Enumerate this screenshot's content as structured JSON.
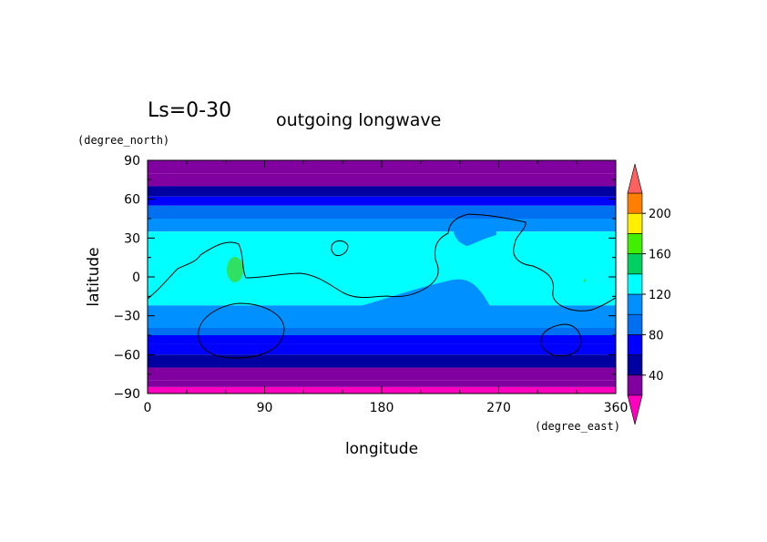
{
  "chart_data": {
    "type": "heatmap",
    "title": "outgoing longwave",
    "subtitle": "Ls=0-30",
    "xlabel": "longitude",
    "ylabel": "latitude",
    "x_units": "(degree_east)",
    "y_units": "(degree_north)",
    "xlim": [
      0,
      360
    ],
    "ylim": [
      -90,
      90
    ],
    "x_ticks": [
      "0",
      "90",
      "180",
      "270",
      "360"
    ],
    "y_ticks": [
      "90",
      "60",
      "30",
      "0",
      "−30",
      "−60",
      "−90"
    ],
    "grid": false,
    "colorbar": {
      "placement": "right",
      "levels": [
        20,
        40,
        60,
        80,
        100,
        120,
        140,
        160,
        180,
        200,
        220
      ],
      "tick_labels": [
        "40",
        "80",
        "120",
        "160",
        "200"
      ],
      "colors": [
        "#8000a0",
        "#0000a0",
        "#0000ff",
        "#0070f0",
        "#0090ff",
        "#00ffff",
        "#00d060",
        "#40f000",
        "#fff000",
        "#ff8000",
        "#f05050"
      ],
      "under_color": "#8000a0",
      "over_color": "#ff6060",
      "extend_low_color": "#ff00c0"
    },
    "latitude_bands": [
      {
        "lat": [
          80,
          90
        ],
        "value": 30
      },
      {
        "lat": [
          70,
          80
        ],
        "value": 30
      },
      {
        "lat": [
          62,
          70
        ],
        "value": 50
      },
      {
        "lat": [
          55,
          62
        ],
        "value": 70
      },
      {
        "lat": [
          45,
          55
        ],
        "value": 90
      },
      {
        "lat": [
          35,
          45
        ],
        "value": 110
      },
      {
        "lat": [
          -22,
          35
        ],
        "value": 130
      },
      {
        "lat": [
          -35,
          -22
        ],
        "value": 110
      },
      {
        "lat": [
          -45,
          -35
        ],
        "value": 90
      },
      {
        "lat": [
          -52,
          -45
        ],
        "value": 70
      },
      {
        "lat": [
          -60,
          -52
        ],
        "value": 70
      },
      {
        "lat": [
          -70,
          -60
        ],
        "value": 50
      },
      {
        "lat": [
          -80,
          -70
        ],
        "value": 30
      },
      {
        "lat": [
          -85,
          -80
        ],
        "value": 30
      },
      {
        "lat": [
          -90,
          -85
        ],
        "value": 15
      }
    ],
    "regions": [
      {
        "name": "low-value intrusion",
        "value": 110,
        "lon": [
          250,
          275
        ],
        "lat": [
          25,
          40
        ]
      },
      {
        "name": "high-value spot",
        "value": 150,
        "lon": [
          60,
          72
        ],
        "lat": [
          0,
          18
        ]
      },
      {
        "name": "high-value speck",
        "value": 150,
        "lon": [
          338,
          342
        ],
        "lat": [
          -2,
          2
        ]
      }
    ]
  }
}
